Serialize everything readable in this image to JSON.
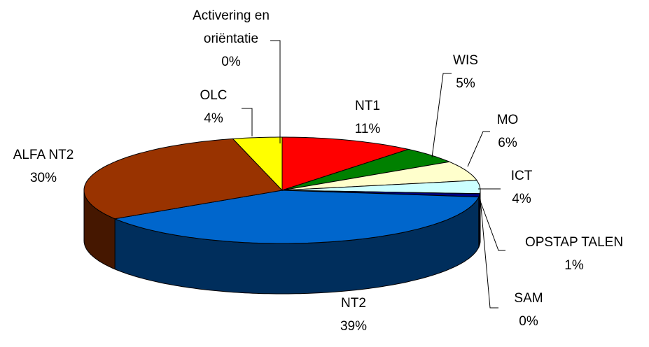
{
  "chart_data": {
    "type": "pie3d",
    "categories": [
      "NT1",
      "WIS",
      "MO",
      "ICT",
      "OPSTAP TALEN",
      "SAM",
      "NT2",
      "ALFA NT2",
      "OLC",
      "Activering en oriëntatie"
    ],
    "values": [
      11,
      5,
      6,
      4,
      1,
      0,
      39,
      30,
      4,
      0
    ],
    "value_labels": [
      "11%",
      "5%",
      "6%",
      "4%",
      "1%",
      "0%",
      "39%",
      "30%",
      "4%",
      "0%"
    ],
    "colors": [
      "#ff0000",
      "#008000",
      "#ffffcc",
      "#ccffff",
      "#000080",
      "#ff00ff",
      "#0066cc",
      "#993300",
      "#ffff00",
      "#9933cc"
    ]
  }
}
